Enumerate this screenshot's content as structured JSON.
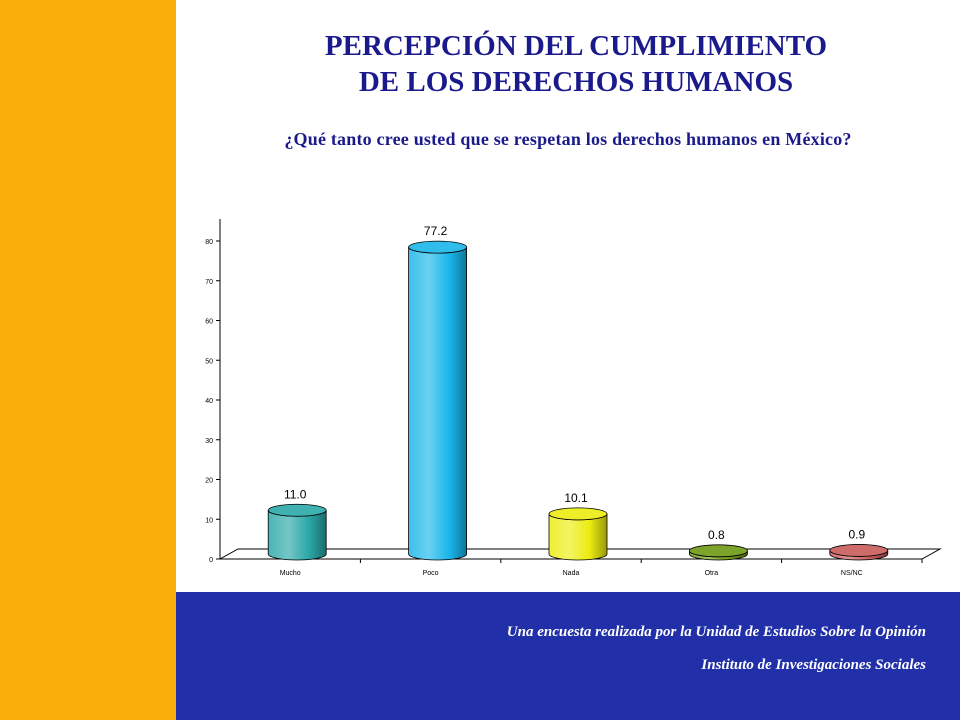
{
  "title_line1": "PERCEPCIÓN DEL CUMPLIMIENTO",
  "title_line2": "DE LOS DERECHOS HUMANOS",
  "subtitle": "¿Qué tanto cree usted que se respetan los derechos humanos en México?",
  "footer": {
    "line1": "Una encuesta realizada por la Unidad de Estudios Sobre la Opinión",
    "line2": "Instituto de Investigaciones Sociales"
  },
  "colors": {
    "sidebar": "#f9ad0b",
    "footer_band": "#2130a9",
    "title": "#1a1a8c"
  },
  "chart_data": {
    "type": "bar",
    "style": "3d-cylinder",
    "categories": [
      "Mucho",
      "Poco",
      "Nada",
      "Otra",
      "NS/NC"
    ],
    "values": [
      11.0,
      77.2,
      10.1,
      0.8,
      0.9
    ],
    "value_labels": [
      "11.0",
      "77.2",
      "10.1",
      "0.8",
      "0.9"
    ],
    "colors": [
      "#2aa8a8",
      "#19b6ea",
      "#ecec10",
      "#6f9a12",
      "#c85a5a"
    ],
    "y_ticks": [
      0,
      10,
      20,
      30,
      40,
      50,
      60,
      70,
      80
    ],
    "ylim": [
      0,
      80
    ],
    "grid": false,
    "legend": "none"
  }
}
